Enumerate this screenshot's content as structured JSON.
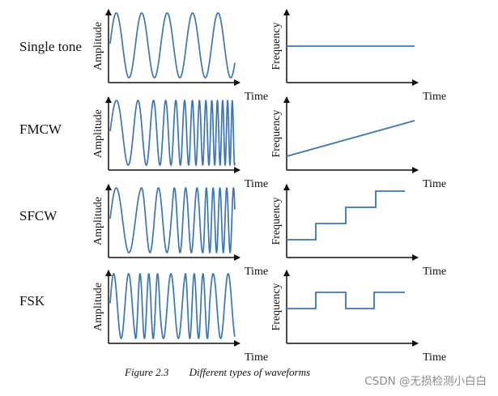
{
  "rows": [
    {
      "label": "Single tone",
      "wave": "sine",
      "freq": "constant"
    },
    {
      "label": "FMCW",
      "wave": "chirp",
      "freq": "ramp"
    },
    {
      "label": "SFCW",
      "wave": "stepped",
      "freq": "steps"
    },
    {
      "label": "FSK",
      "wave": "fsk",
      "freq": "fsk"
    }
  ],
  "axes": {
    "amplitude": "Amplitude",
    "frequency": "Frequency",
    "time": "Time"
  },
  "caption": {
    "number": "Figure 2.3",
    "text": "Different types of waveforms"
  },
  "watermark": "CSDN @无损检测小白白",
  "colors": {
    "signal": "#3a75b8",
    "axis": "#111111"
  }
}
